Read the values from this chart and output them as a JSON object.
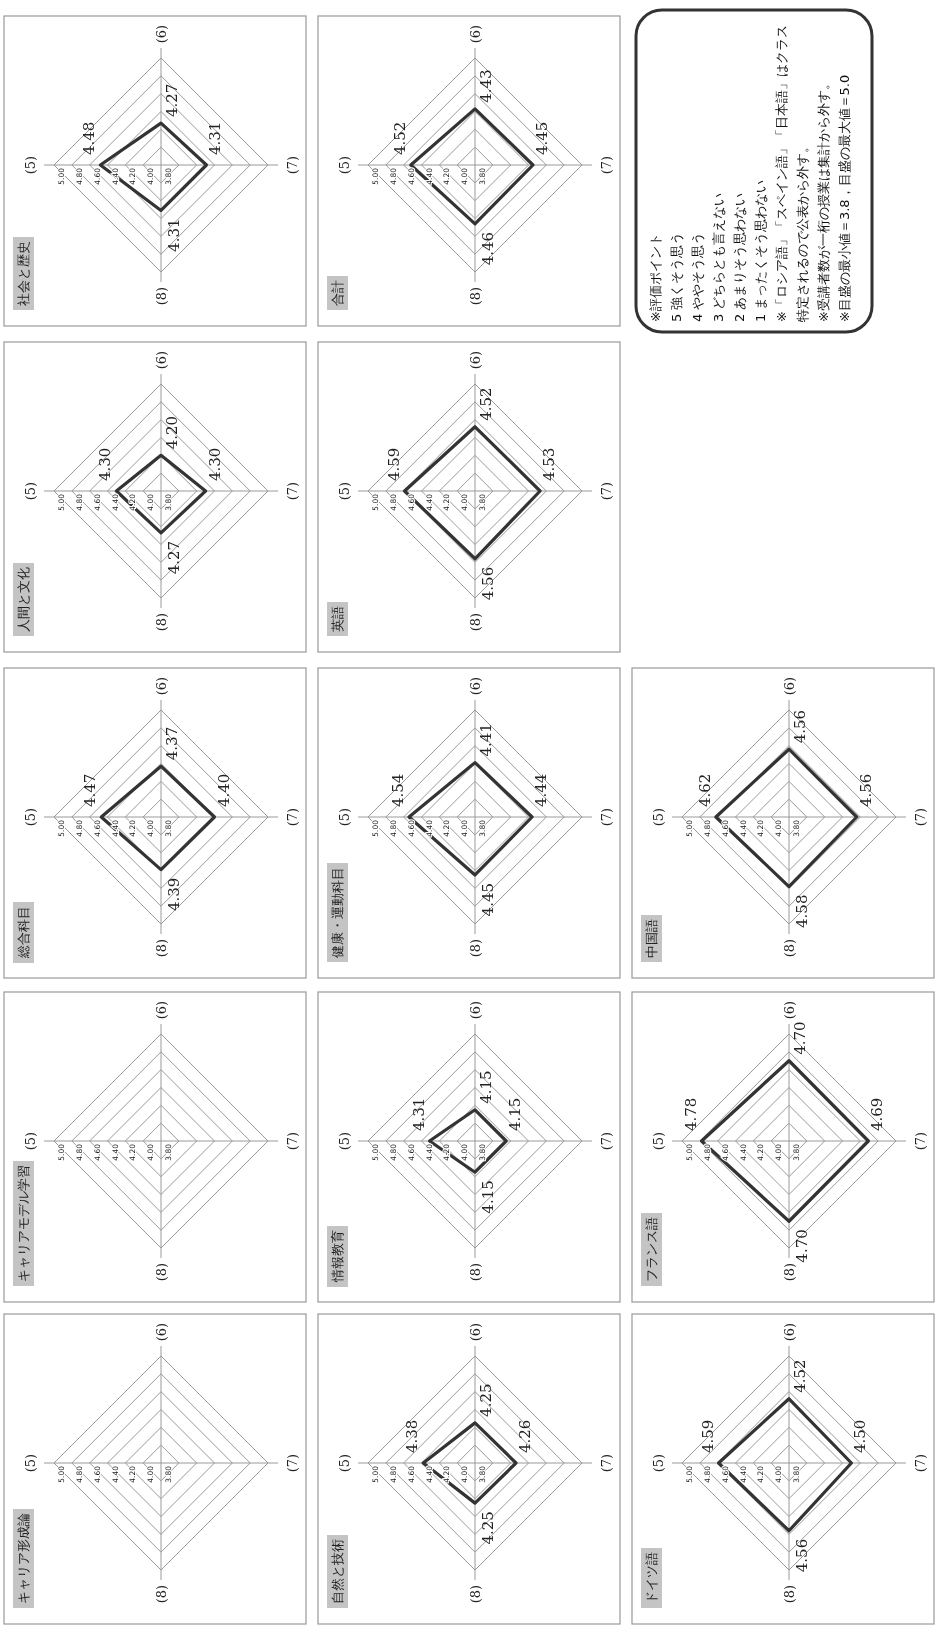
{
  "chart_data": [
    {
      "type": "radar",
      "title": "キャリア形成論",
      "categories": [
        "(5)",
        "(6)",
        "(7)",
        "(8)"
      ],
      "ylim": [
        3.8,
        5.0
      ],
      "yticks": [
        {
          "value": 3.8,
          "label": "3.80"
        },
        {
          "value": 4.0,
          "label": "4.00"
        },
        {
          "value": 4.2,
          "label": "4.20"
        },
        {
          "value": 4.4,
          "label": "4.40"
        },
        {
          "value": 4.6,
          "label": "4.60"
        },
        {
          "value": 4.8,
          "label": "4.80"
        },
        {
          "value": 5.0,
          "label": "5.00"
        }
      ]
    },
    {
      "type": "radar",
      "title": "キャリアモデル学習",
      "categories": [
        "(5)",
        "(6)",
        "(7)",
        "(8)"
      ],
      "ylim": [
        3.8,
        5.0
      ],
      "yticks": [
        {
          "value": 3.8,
          "label": "3.80"
        },
        {
          "value": 4.0,
          "label": "4.00"
        },
        {
          "value": 4.2,
          "label": "4.20"
        },
        {
          "value": 4.4,
          "label": "4.40"
        },
        {
          "value": 4.6,
          "label": "4.60"
        },
        {
          "value": 4.8,
          "label": "4.80"
        },
        {
          "value": 5.0,
          "label": "5.00"
        }
      ]
    },
    {
      "type": "radar",
      "title": "総合科目",
      "categories": [
        "(5)",
        "(6)",
        "(7)",
        "(8)"
      ],
      "ylim": [
        3.8,
        5.0
      ],
      "yticks": [
        {
          "value": 3.8,
          "label": "3.80"
        },
        {
          "value": 4.0,
          "label": "4.00"
        },
        {
          "value": 4.2,
          "label": "4.20"
        },
        {
          "value": 4.4,
          "label": "4.40"
        },
        {
          "value": 4.6,
          "label": "4.60"
        },
        {
          "value": 4.8,
          "label": "4.80"
        },
        {
          "value": 5.0,
          "label": "5.00"
        }
      ],
      "series": [
        {
          "color": "#333333",
          "values": [
            4.47,
            4.37,
            4.4,
            4.39
          ],
          "value_labels": [
            "4.47",
            "4.37",
            "4.40",
            "4.39"
          ]
        }
      ]
    },
    {
      "type": "radar",
      "title": "人間と文化",
      "categories": [
        "(5)",
        "(6)",
        "(7)",
        "(8)"
      ],
      "ylim": [
        3.8,
        5.0
      ],
      "yticks": [
        {
          "value": 3.8,
          "label": "3.80"
        },
        {
          "value": 4.0,
          "label": "4.00"
        },
        {
          "value": 4.2,
          "label": "4.20"
        },
        {
          "value": 4.4,
          "label": "4.40"
        },
        {
          "value": 4.6,
          "label": "4.60"
        },
        {
          "value": 4.8,
          "label": "4.80"
        },
        {
          "value": 5.0,
          "label": "5.00"
        }
      ],
      "series": [
        {
          "color": "#333333",
          "values": [
            4.3,
            4.2,
            4.3,
            4.27
          ],
          "value_labels": [
            "4.30",
            "4.20",
            "4.30",
            "4.27"
          ]
        }
      ]
    },
    {
      "type": "radar",
      "title": "社会と歴史",
      "categories": [
        "(5)",
        "(6)",
        "(7)",
        "(8)"
      ],
      "ylim": [
        3.8,
        5.0
      ],
      "yticks": [
        {
          "value": 3.8,
          "label": "3.80"
        },
        {
          "value": 4.0,
          "label": "4.00"
        },
        {
          "value": 4.2,
          "label": "4.20"
        },
        {
          "value": 4.4,
          "label": "4.40"
        },
        {
          "value": 4.6,
          "label": "4.60"
        },
        {
          "value": 4.8,
          "label": "4.80"
        },
        {
          "value": 5.0,
          "label": "5.00"
        }
      ],
      "series": [
        {
          "color": "#333333",
          "values": [
            4.48,
            4.27,
            4.31,
            4.31
          ],
          "value_labels": [
            "4.48",
            "4.27",
            "4.31",
            "4.31"
          ]
        }
      ]
    },
    {
      "type": "radar",
      "title": "自然と技術",
      "categories": [
        "(5)",
        "(6)",
        "(7)",
        "(8)"
      ],
      "ylim": [
        3.8,
        5.0
      ],
      "yticks": [
        {
          "value": 3.8,
          "label": "3.80"
        },
        {
          "value": 4.0,
          "label": "4.00"
        },
        {
          "value": 4.2,
          "label": "4.20"
        },
        {
          "value": 4.4,
          "label": "4.40"
        },
        {
          "value": 4.6,
          "label": "4.60"
        },
        {
          "value": 4.8,
          "label": "4.80"
        },
        {
          "value": 5.0,
          "label": "5.00"
        }
      ],
      "series": [
        {
          "color": "#333333",
          "values": [
            4.38,
            4.25,
            4.26,
            4.25
          ],
          "value_labels": [
            "4.38",
            "4.25",
            "4.26",
            "4.25"
          ]
        }
      ]
    },
    {
      "type": "radar",
      "title": "情報教育",
      "categories": [
        "(5)",
        "(6)",
        "(7)",
        "(8)"
      ],
      "ylim": [
        3.8,
        5.0
      ],
      "yticks": [
        {
          "value": 3.8,
          "label": "3.80"
        },
        {
          "value": 4.0,
          "label": "4.00"
        },
        {
          "value": 4.2,
          "label": "4.20"
        },
        {
          "value": 4.4,
          "label": "4.40"
        },
        {
          "value": 4.6,
          "label": "4.60"
        },
        {
          "value": 4.8,
          "label": "4.80"
        },
        {
          "value": 5.0,
          "label": "5.00"
        }
      ],
      "series": [
        {
          "color": "#333333",
          "values": [
            4.31,
            4.15,
            4.15,
            4.15
          ],
          "value_labels": [
            "4.31",
            "4.15",
            "4.15",
            "4.15"
          ]
        }
      ]
    },
    {
      "type": "radar",
      "title": "健康・運動科目",
      "categories": [
        "(5)",
        "(6)",
        "(7)",
        "(8)"
      ],
      "ylim": [
        3.8,
        5.0
      ],
      "yticks": [
        {
          "value": 3.8,
          "label": "3.80"
        },
        {
          "value": 4.0,
          "label": "4.00"
        },
        {
          "value": 4.2,
          "label": "4.20"
        },
        {
          "value": 4.4,
          "label": "4.40"
        },
        {
          "value": 4.6,
          "label": "4.60"
        },
        {
          "value": 4.8,
          "label": "4.80"
        },
        {
          "value": 5.0,
          "label": "5.00"
        }
      ],
      "series": [
        {
          "color": "#333333",
          "values": [
            4.54,
            4.41,
            4.44,
            4.45
          ],
          "value_labels": [
            "4.54",
            "4.41",
            "4.44",
            "4.45"
          ]
        }
      ]
    },
    {
      "type": "radar",
      "title": "英語",
      "categories": [
        "(5)",
        "(6)",
        "(7)",
        "(8)"
      ],
      "ylim": [
        3.8,
        5.0
      ],
      "yticks": [
        {
          "value": 3.8,
          "label": "3.80"
        },
        {
          "value": 4.0,
          "label": "4.00"
        },
        {
          "value": 4.2,
          "label": "4.20"
        },
        {
          "value": 4.4,
          "label": "4.40"
        },
        {
          "value": 4.6,
          "label": "4.60"
        },
        {
          "value": 4.8,
          "label": "4.80"
        },
        {
          "value": 5.0,
          "label": "5.00"
        }
      ],
      "series": [
        {
          "color": "#333333",
          "values": [
            4.59,
            4.52,
            4.53,
            4.56
          ],
          "value_labels": [
            "4.59",
            "4.52",
            "4.53",
            "4.56"
          ]
        }
      ]
    },
    {
      "type": "radar",
      "title": "合計",
      "categories": [
        "(5)",
        "(6)",
        "(7)",
        "(8)"
      ],
      "ylim": [
        3.8,
        5.0
      ],
      "yticks": [
        {
          "value": 3.8,
          "label": "3.80"
        },
        {
          "value": 4.0,
          "label": "4.00"
        },
        {
          "value": 4.2,
          "label": "4.20"
        },
        {
          "value": 4.4,
          "label": "4.40"
        },
        {
          "value": 4.6,
          "label": "4.60"
        },
        {
          "value": 4.8,
          "label": "4.80"
        },
        {
          "value": 5.0,
          "label": "5.00"
        }
      ],
      "series": [
        {
          "color": "#333333",
          "values": [
            4.52,
            4.43,
            4.45,
            4.46
          ],
          "value_labels": [
            "4.52",
            "4.43",
            "4.45",
            "4.46"
          ]
        }
      ]
    },
    {
      "type": "radar",
      "title": "ドイツ語",
      "categories": [
        "(5)",
        "(6)",
        "(7)",
        "(8)"
      ],
      "ylim": [
        3.8,
        5.0
      ],
      "yticks": [
        {
          "value": 3.8,
          "label": "3.80"
        },
        {
          "value": 4.0,
          "label": "4.00"
        },
        {
          "value": 4.2,
          "label": "4.20"
        },
        {
          "value": 4.4,
          "label": "4.40"
        },
        {
          "value": 4.6,
          "label": "4.60"
        },
        {
          "value": 4.8,
          "label": "4.80"
        },
        {
          "value": 5.0,
          "label": "5.00"
        }
      ],
      "series": [
        {
          "color": "#333333",
          "values": [
            4.59,
            4.52,
            4.5,
            4.56
          ],
          "value_labels": [
            "4.59",
            "4.52",
            "4.50",
            "4.56"
          ]
        }
      ]
    },
    {
      "type": "radar",
      "title": "フランス語",
      "categories": [
        "(5)",
        "(6)",
        "(7)",
        "(8)"
      ],
      "ylim": [
        3.8,
        5.0
      ],
      "yticks": [
        {
          "value": 3.8,
          "label": "3.80"
        },
        {
          "value": 4.0,
          "label": "4.00"
        },
        {
          "value": 4.2,
          "label": "4.20"
        },
        {
          "value": 4.4,
          "label": "4.40"
        },
        {
          "value": 4.6,
          "label": "4.60"
        },
        {
          "value": 4.8,
          "label": "4.80"
        },
        {
          "value": 5.0,
          "label": "5.00"
        }
      ],
      "series": [
        {
          "color": "#333333",
          "values": [
            4.78,
            4.7,
            4.69,
            4.7
          ],
          "value_labels": [
            "4.78",
            "4.70",
            "4.69",
            "4.70"
          ]
        }
      ]
    },
    {
      "type": "radar",
      "title": "中国語",
      "categories": [
        "(5)",
        "(6)",
        "(7)",
        "(8)"
      ],
      "ylim": [
        3.8,
        5.0
      ],
      "yticks": [
        {
          "value": 3.8,
          "label": "3.80"
        },
        {
          "value": 4.0,
          "label": "4.00"
        },
        {
          "value": 4.2,
          "label": "4.20"
        },
        {
          "value": 4.4,
          "label": "4.40"
        },
        {
          "value": 4.6,
          "label": "4.60"
        },
        {
          "value": 4.8,
          "label": "4.80"
        },
        {
          "value": 5.0,
          "label": "5.00"
        }
      ],
      "series": [
        {
          "color": "#333333",
          "values": [
            4.62,
            4.56,
            4.56,
            4.58
          ],
          "value_labels": [
            "4.62",
            "4.56",
            "4.56",
            "4.58"
          ]
        }
      ]
    },
    {
      "type": "other",
      "annotations": [
        "※評価ポイント",
        "5 強くそう思う",
        "4 ややそう思う",
        "3 どちらとも言えない",
        "2 あまりそう思わない",
        "1 まったくそう思わない",
        "※「ロシア語」「スペイン語」「日本語」はクラス",
        "特定されるので公表から外す。",
        "※受講者数が一桁の授業は集計から外す。",
        "※目盛の最小値＝3.8，目盛の最大値＝5.0"
      ]
    }
  ]
}
